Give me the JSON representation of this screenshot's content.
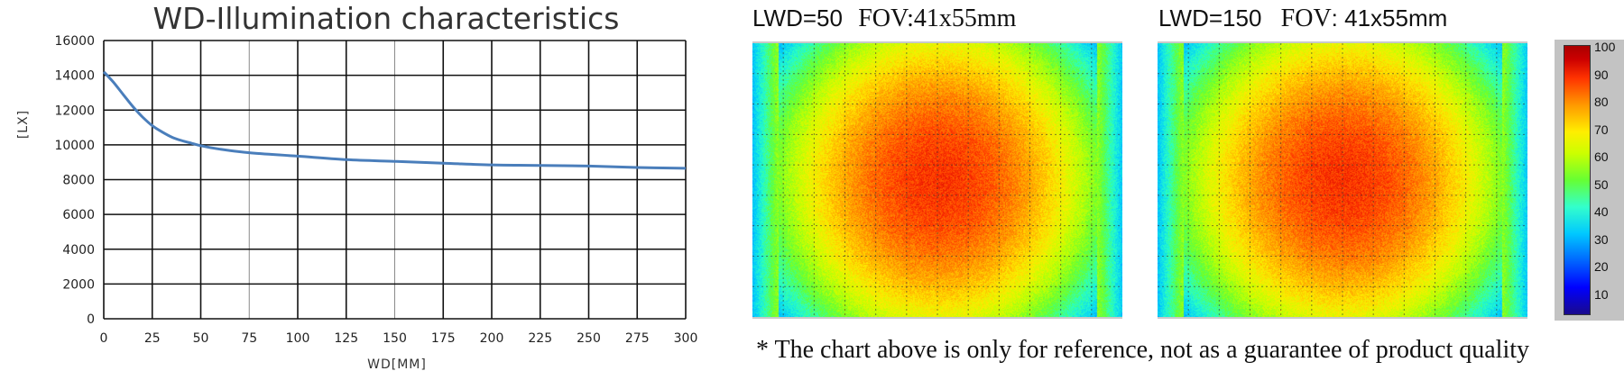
{
  "chart_data": [
    {
      "type": "line",
      "title": "WD-Illumination characteristics",
      "xlabel": "WD[MM]",
      "ylabel": "[LX]",
      "xlim": [
        0,
        300
      ],
      "ylim": [
        0,
        16000
      ],
      "grid": true,
      "x_ticks": [
        "0",
        "25",
        "50",
        "75",
        "100",
        "125",
        "150",
        "175",
        "200",
        "225",
        "250",
        "275",
        "300"
      ],
      "y_ticks": [
        "0",
        "2000",
        "4000",
        "6000",
        "8000",
        "10000",
        "12000",
        "14000",
        "16000"
      ],
      "series": [
        {
          "color": "#4a7ebb",
          "x": [
            0,
            5,
            10,
            15,
            20,
            25,
            30,
            35,
            40,
            45,
            50,
            60,
            75,
            100,
            125,
            150,
            175,
            200,
            225,
            250,
            275,
            300
          ],
          "y": [
            14200,
            13600,
            12900,
            12200,
            11600,
            11100,
            10750,
            10450,
            10250,
            10100,
            9950,
            9750,
            9550,
            9350,
            9150,
            9050,
            8950,
            8850,
            8820,
            8780,
            8700,
            8650
          ]
        }
      ]
    },
    {
      "type": "heatmap",
      "title_a": "LWD=50",
      "title_b": "FOV:41x55mm",
      "scale": [
        0,
        100
      ]
    },
    {
      "type": "heatmap",
      "title_a": "LWD=150",
      "title_b": "FOV",
      "title_c": ": 41x55mm",
      "scale": [
        0,
        100
      ]
    }
  ],
  "colorbar": {
    "ticks": [
      "100",
      "90",
      "80",
      "70",
      "60",
      "50",
      "40",
      "30",
      "20",
      "10"
    ]
  },
  "footnote": "* The chart above is only for reference, not as a guarantee of product quality"
}
